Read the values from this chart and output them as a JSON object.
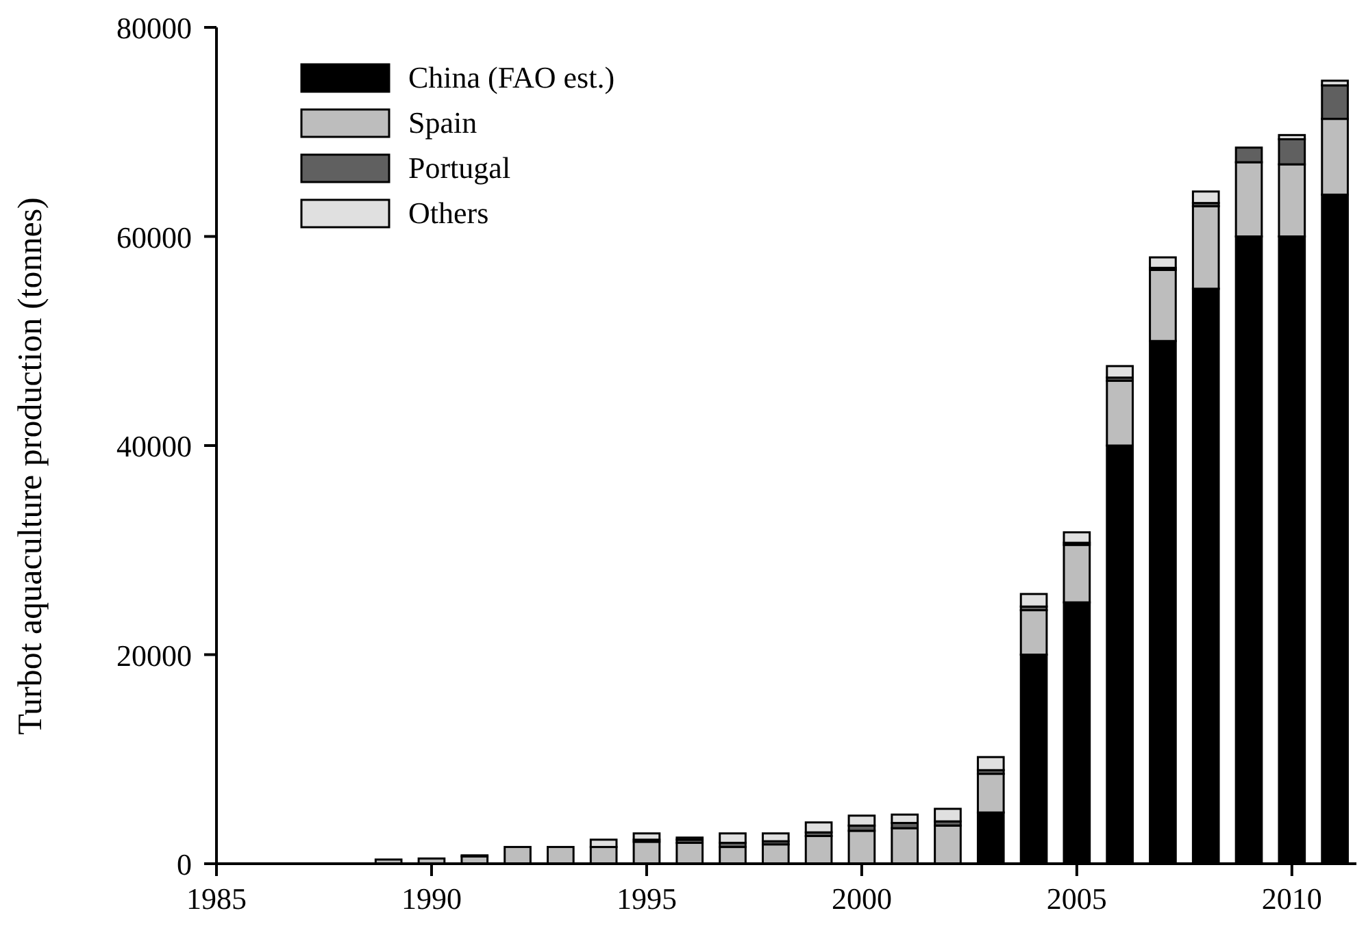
{
  "chart_data": {
    "type": "bar",
    "stacked": true,
    "ylabel": "Turbot aquaculture production (tonnes)",
    "x": [
      1989,
      1990,
      1991,
      1992,
      1993,
      1994,
      1995,
      1996,
      1997,
      1998,
      1999,
      2000,
      2001,
      2002,
      2003,
      2004,
      2005,
      2006,
      2007,
      2008,
      2009,
      2010,
      2011
    ],
    "xlim": [
      1985,
      2011.5
    ],
    "xticks": [
      1985,
      1990,
      1995,
      2000,
      2005,
      2010
    ],
    "ylim": [
      0,
      80000
    ],
    "yticks": [
      0,
      20000,
      40000,
      60000,
      80000
    ],
    "grid": false,
    "legend": "top left",
    "series": [
      {
        "name": "China (FAO est.)",
        "color": "#000000",
        "values": [
          null,
          null,
          null,
          null,
          null,
          null,
          null,
          null,
          null,
          null,
          null,
          null,
          null,
          null,
          4900,
          20000,
          25000,
          40000,
          50000,
          55000,
          60000,
          60000,
          64000
        ]
      },
      {
        "name": "Spain",
        "color": "#bdbdbd",
        "values": [
          400,
          500,
          700,
          1600,
          1600,
          1600,
          2100,
          2000,
          1600,
          1850,
          2650,
          3150,
          3400,
          3650,
          3700,
          4250,
          5500,
          6200,
          6800,
          7900,
          7100,
          6900,
          7250
        ]
      },
      {
        "name": "Portugal",
        "color": "#606060",
        "values": [
          null,
          null,
          null,
          null,
          null,
          null,
          200,
          300,
          400,
          300,
          350,
          500,
          500,
          400,
          350,
          350,
          200,
          300,
          200,
          300,
          1400,
          2400,
          3200
        ]
      },
      {
        "name": "Others",
        "color": "#e0e0e0",
        "values": [
          null,
          null,
          100,
          null,
          null,
          700,
          600,
          200,
          900,
          750,
          950,
          950,
          800,
          1200,
          1250,
          1200,
          1000,
          1100,
          1000,
          1100,
          null,
          400,
          450
        ]
      }
    ]
  }
}
